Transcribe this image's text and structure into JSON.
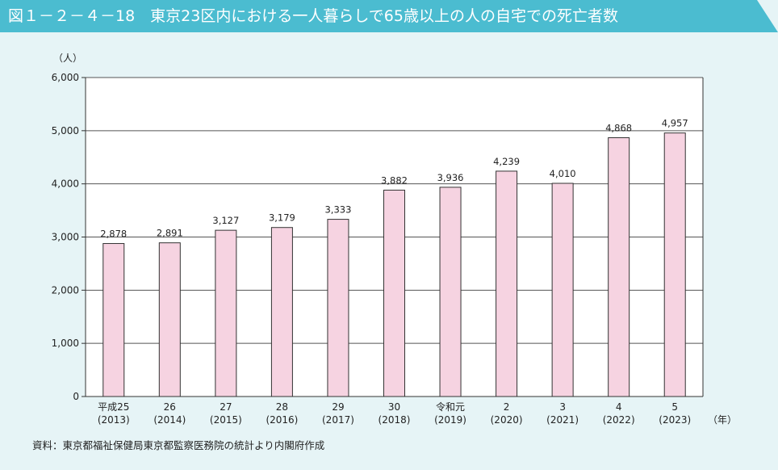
{
  "header": {
    "title": "図１－２－４－18　東京23区内における一人暮らしで65歳以上の人の自宅での死亡者数",
    "bar_color": "#4bbcd0"
  },
  "chart_data": {
    "type": "bar",
    "title": "",
    "ylabel": "（人）",
    "xlabel": "（年）",
    "ylim": [
      0,
      6000
    ],
    "yticks": [
      0,
      1000,
      2000,
      3000,
      4000,
      5000,
      6000
    ],
    "ytick_labels": [
      "0",
      "1,000",
      "2,000",
      "3,000",
      "4,000",
      "5,000",
      "6,000"
    ],
    "grid": true,
    "categories": [
      [
        "平成25",
        "(2013)"
      ],
      [
        "26",
        "(2014)"
      ],
      [
        "27",
        "(2015)"
      ],
      [
        "28",
        "(2016)"
      ],
      [
        "29",
        "(2017)"
      ],
      [
        "30",
        "(2018)"
      ],
      [
        "令和元",
        "(2019)"
      ],
      [
        "2",
        "(2020)"
      ],
      [
        "3",
        "(2021)"
      ],
      [
        "4",
        "(2022)"
      ],
      [
        "5",
        "(2023)"
      ]
    ],
    "values": [
      2878,
      2891,
      3127,
      3179,
      3333,
      3882,
      3936,
      4239,
      4010,
      4868,
      4957
    ],
    "value_labels": [
      "2,878",
      "2,891",
      "3,127",
      "3,179",
      "3,333",
      "3,882",
      "3,936",
      "4,239",
      "4,010",
      "4,868",
      "4,957"
    ],
    "bar_color": "#f6d3e1",
    "bar_edge_color": "#333333"
  },
  "footer": {
    "source": "資料：東京都福祉保健局東京都監察医務院の統計より内閣府作成"
  }
}
